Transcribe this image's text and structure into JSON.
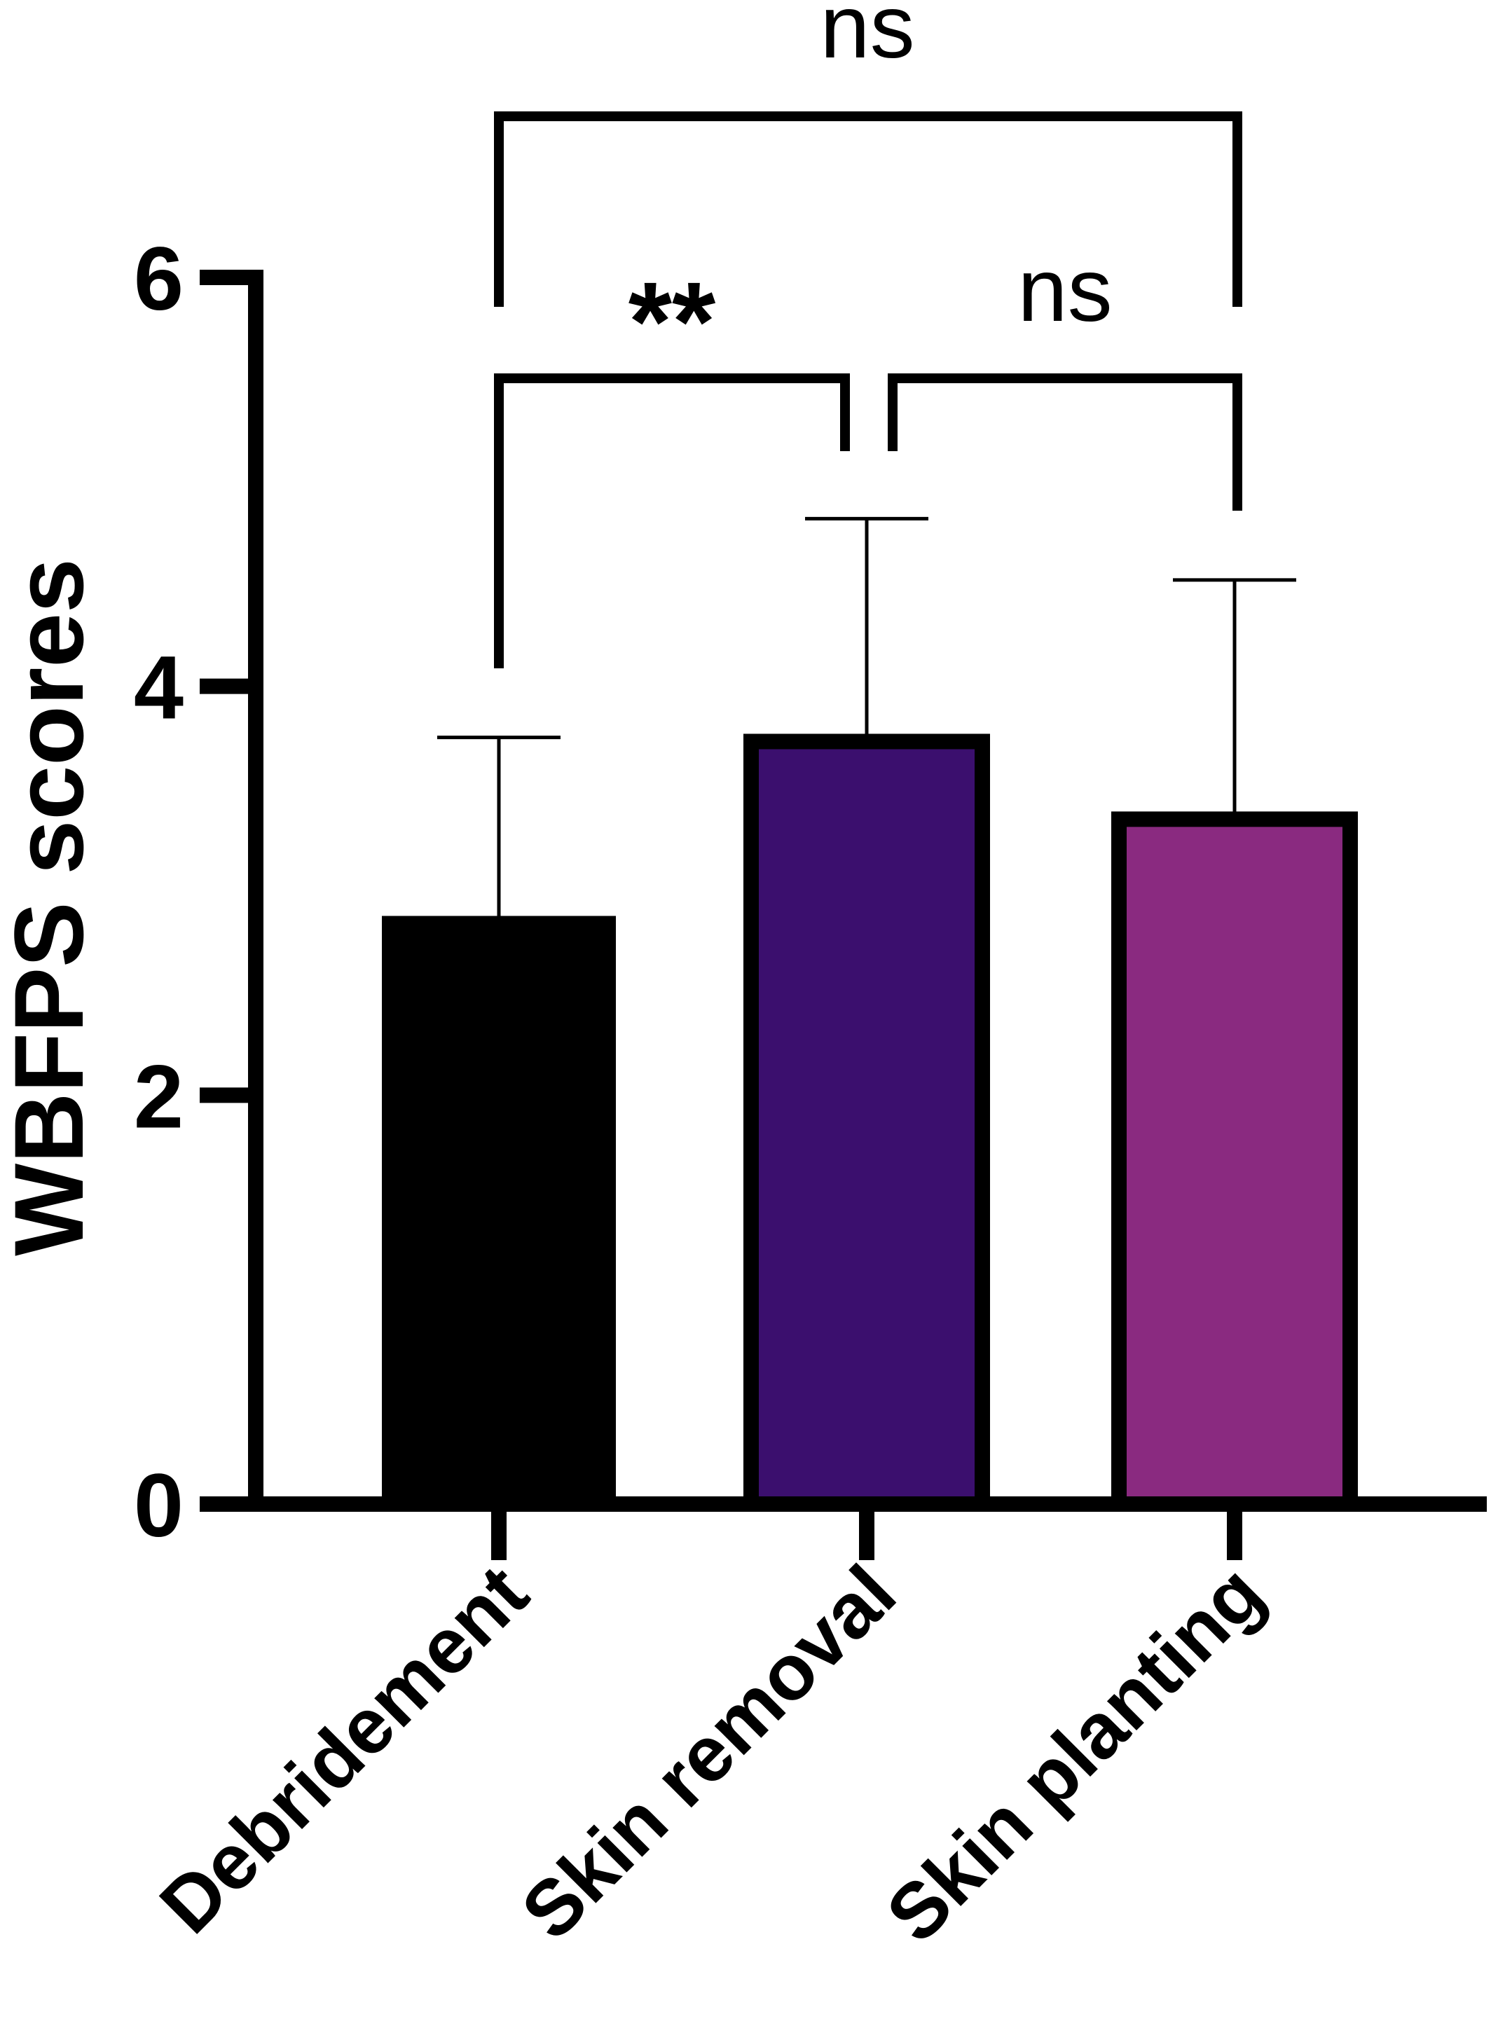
{
  "chart_data": {
    "type": "bar",
    "title": "",
    "xlabel": "",
    "ylabel": "WBFPS scores",
    "ylim": [
      0,
      6
    ],
    "yticks": [
      "0",
      "2",
      "4",
      "6"
    ],
    "grid": false,
    "categories": [
      "Debridement",
      "Skin removal",
      "Skin planting"
    ],
    "values": [
      2.87,
      3.73,
      3.35
    ],
    "errors": [
      0.88,
      1.09,
      1.17
    ],
    "colors": [
      "#000000",
      "#3b0f6e",
      "#8a2a80"
    ],
    "significance": [
      {
        "from": 0,
        "to": 1,
        "label": "**"
      },
      {
        "from": 1,
        "to": 2,
        "label": "ns"
      },
      {
        "from": 0,
        "to": 2,
        "label": "ns"
      }
    ]
  }
}
